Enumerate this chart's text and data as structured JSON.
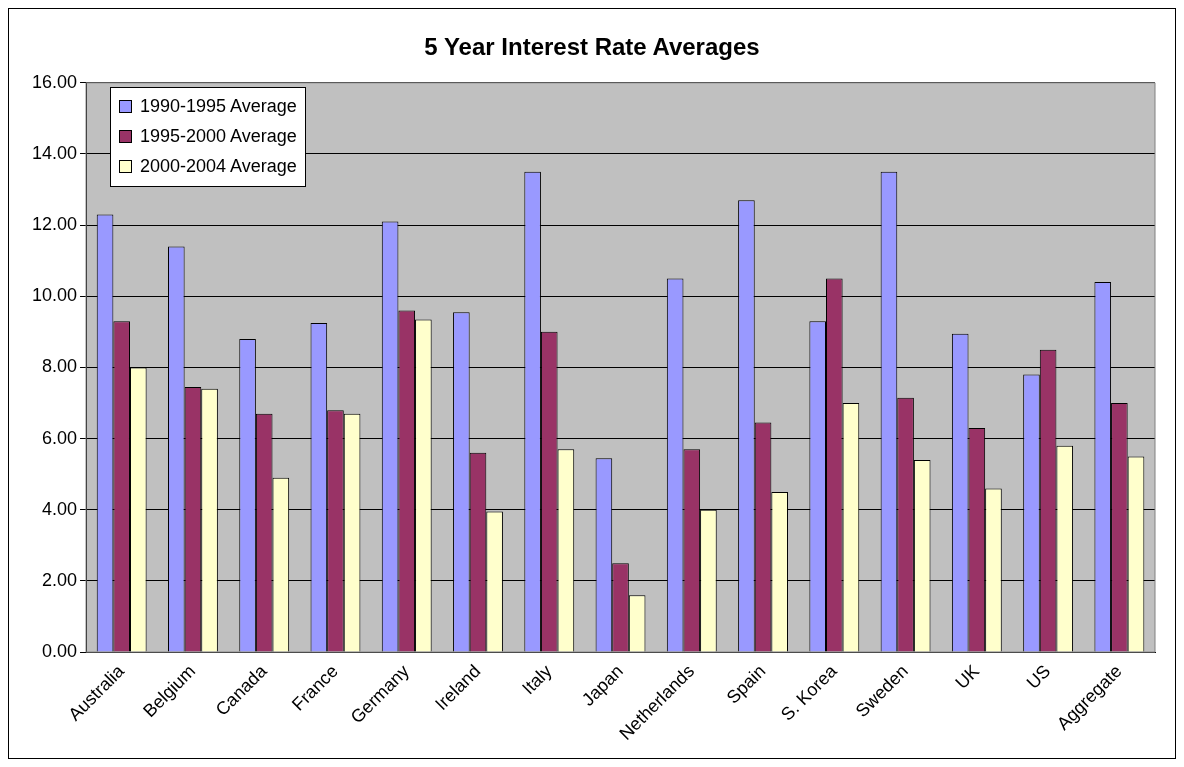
{
  "chart_data": {
    "type": "bar",
    "title": "5 Year Interest Rate Averages",
    "categories": [
      "Australia",
      "Belgium",
      "Canada",
      "France",
      "Germany",
      "Ireland",
      "Italy",
      "Japan",
      "Netherlands",
      "Spain",
      "S. Korea",
      "Sweden",
      "UK",
      "US",
      "Aggregate"
    ],
    "series": [
      {
        "name": "1990-1995 Average",
        "color": "#9999ff",
        "values": [
          12.3,
          11.4,
          8.8,
          9.25,
          12.1,
          9.55,
          13.5,
          5.45,
          10.5,
          12.7,
          9.3,
          13.5,
          8.95,
          7.8,
          10.4
        ]
      },
      {
        "name": "1995-2000 Average",
        "color": "#993366",
        "values": [
          9.3,
          7.45,
          6.7,
          6.8,
          9.6,
          5.6,
          9.0,
          2.5,
          5.7,
          6.45,
          10.5,
          7.15,
          6.3,
          8.5,
          7.0
        ]
      },
      {
        "name": "2000-2004 Average",
        "color": "#ffffcc",
        "values": [
          8.0,
          7.4,
          4.9,
          6.7,
          9.35,
          3.95,
          5.7,
          1.6,
          4.0,
          4.5,
          7.0,
          5.4,
          4.6,
          5.8,
          5.5
        ]
      }
    ],
    "ylim": [
      0,
      16
    ],
    "yticks": [
      {
        "value": 0,
        "label": "0.00"
      },
      {
        "value": 2,
        "label": "2.00"
      },
      {
        "value": 4,
        "label": "4.00"
      },
      {
        "value": 6,
        "label": "6.00"
      },
      {
        "value": 8,
        "label": "8.00"
      },
      {
        "value": 10,
        "label": "10.00"
      },
      {
        "value": 12,
        "label": "12.00"
      },
      {
        "value": 14,
        "label": "14.00"
      },
      {
        "value": 16,
        "label": "16.00"
      }
    ],
    "grid": "y",
    "legend": "top left"
  }
}
